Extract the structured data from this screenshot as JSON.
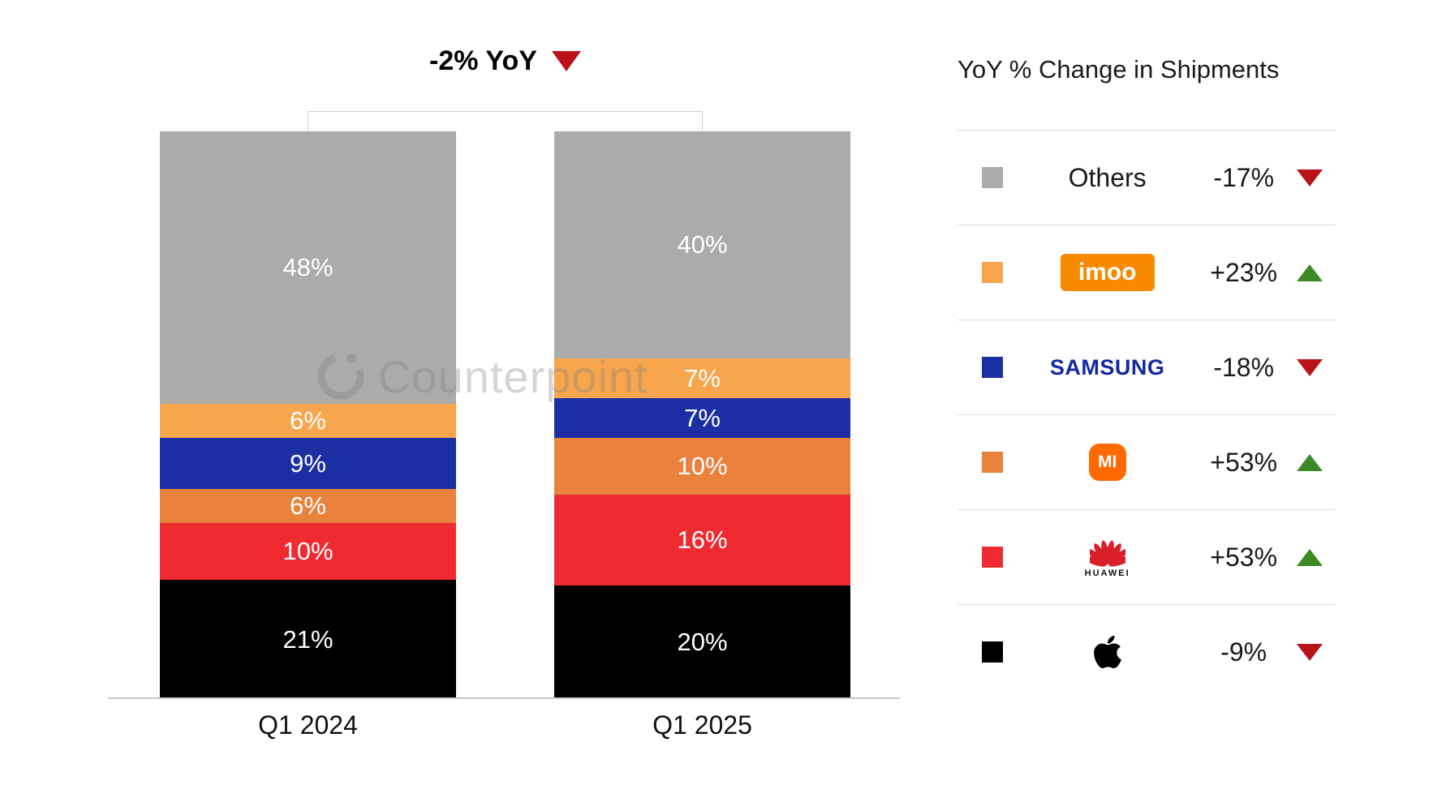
{
  "title": {
    "label": "-2% YoY"
  },
  "watermark": "Counterpoint",
  "legend_panel": {
    "title": "YoY % Change in Shipments",
    "rows": [
      {
        "brand": "Others",
        "logo": "others-text",
        "logo_text": "Others",
        "swatch": "#ABABAB",
        "change": "-17%",
        "direction": "down"
      },
      {
        "brand": "imoo",
        "logo": "imoo-logo",
        "logo_text": "imoo",
        "swatch": "#F7A64E",
        "change": "+23%",
        "direction": "up"
      },
      {
        "brand": "Samsung",
        "logo": "samsung-logo",
        "logo_text": "SAMSUNG",
        "swatch": "#1C2EA4",
        "change": "-18%",
        "direction": "down"
      },
      {
        "brand": "Xiaomi",
        "logo": "xiaomi-logo",
        "logo_text": "MI",
        "swatch": "#E8823D",
        "change": "+53%",
        "direction": "up"
      },
      {
        "brand": "Huawei",
        "logo": "huawei-logo",
        "logo_text": "HUAWEI",
        "swatch": "#EF2B31",
        "change": "+53%",
        "direction": "up"
      },
      {
        "brand": "Apple",
        "logo": "apple-logo",
        "logo_text": "",
        "swatch": "#000000",
        "change": "-9%",
        "direction": "down"
      }
    ]
  },
  "chart_data": {
    "type": "bar",
    "subtype": "stacked-100-percent",
    "title": "-2% YoY",
    "legend_title": "YoY % Change in Shipments",
    "categories": [
      "Q1 2024",
      "Q1 2025"
    ],
    "series": [
      {
        "name": "Apple",
        "color": "#000000",
        "values": [
          21,
          20
        ]
      },
      {
        "name": "Huawei",
        "color": "#EF2B31",
        "values": [
          10,
          16
        ]
      },
      {
        "name": "Xiaomi",
        "color": "#E8823D",
        "values": [
          6,
          10
        ]
      },
      {
        "name": "Samsung",
        "color": "#1C2EA4",
        "values": [
          9,
          7
        ]
      },
      {
        "name": "imoo",
        "color": "#F7A64E",
        "values": [
          6,
          7
        ]
      },
      {
        "name": "Others",
        "color": "#ABABAB",
        "values": [
          48,
          40
        ]
      }
    ],
    "value_suffix": "%",
    "ylim": [
      0,
      100
    ],
    "grid": false,
    "legend_position": "right"
  },
  "colors": {
    "triangle_up": "#3C8A26",
    "triangle_down": "#B9121B",
    "axis": "#C9C9C9"
  }
}
